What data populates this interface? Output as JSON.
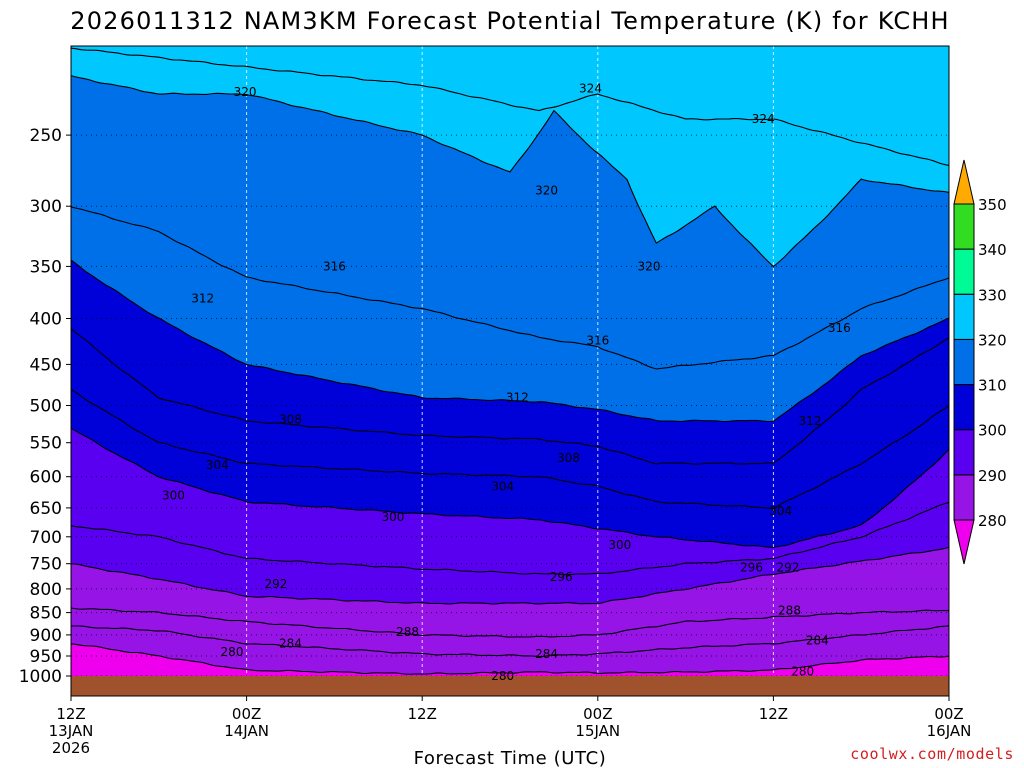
{
  "chart_data": {
    "type": "contour",
    "title": "2026011312 NAM3KM Forecast Potential Temperature (K) for KCHH",
    "xlabel": "Forecast Time (UTC)",
    "ylabel": "",
    "y_axis": {
      "ticks": [
        250,
        300,
        350,
        400,
        450,
        500,
        550,
        600,
        650,
        700,
        750,
        800,
        850,
        900,
        950,
        1000
      ],
      "labels": [
        "250",
        "300",
        "350",
        "400",
        "450",
        "500",
        "550",
        "600",
        "650",
        "700",
        "750",
        "800",
        "850",
        "900",
        "950",
        "1000"
      ],
      "scale": "log-pressure",
      "ylim": [
        1000,
        200
      ],
      "units": "hPa"
    },
    "x_axis": {
      "xlim": [
        0,
        60
      ],
      "units": "hours since 2026011312",
      "ticks": [
        {
          "hour": 0,
          "line1": "12Z",
          "line2": "13JAN",
          "line3": "2026"
        },
        {
          "hour": 12,
          "line1": "00Z",
          "line2": "14JAN",
          "line3": ""
        },
        {
          "hour": 24,
          "line1": "12Z",
          "line2": "",
          "line3": ""
        },
        {
          "hour": 36,
          "line1": "00Z",
          "line2": "15JAN",
          "line3": ""
        },
        {
          "hour": 48,
          "line1": "12Z",
          "line2": "",
          "line3": ""
        },
        {
          "hour": 60,
          "line1": "00Z",
          "line2": "16JAN",
          "line3": ""
        }
      ]
    },
    "grid": true,
    "contour_interval_K": 2,
    "colorbar": {
      "levels": [
        280,
        290,
        300,
        310,
        320,
        330,
        340,
        350
      ],
      "labels": [
        "280",
        "290",
        "300",
        "310",
        "320",
        "330",
        "340",
        "350"
      ],
      "colors": [
        "#ee00ee",
        "#9614e6",
        "#5a00f0",
        "#0000d8",
        "#0070e8",
        "#00c8ff",
        "#00fa96",
        "#32dc20",
        "#e6ff00",
        "#ffaa00"
      ],
      "placement": "right"
    },
    "isentropes": [
      {
        "theta": 280,
        "pressure_by_hour": [
          [
            0,
            920
          ],
          [
            6,
            950
          ],
          [
            12,
            985
          ],
          [
            24,
            995
          ],
          [
            32,
            990
          ],
          [
            36,
            992
          ],
          [
            42,
            990
          ],
          [
            48,
            985
          ],
          [
            54,
            960
          ],
          [
            60,
            950
          ]
        ]
      },
      {
        "theta": 284,
        "pressure_by_hour": [
          [
            0,
            880
          ],
          [
            6,
            890
          ],
          [
            12,
            920
          ],
          [
            24,
            945
          ],
          [
            32,
            950
          ],
          [
            36,
            945
          ],
          [
            42,
            930
          ],
          [
            48,
            920
          ],
          [
            54,
            900
          ],
          [
            60,
            880
          ]
        ]
      },
      {
        "theta": 288,
        "pressure_by_hour": [
          [
            0,
            840
          ],
          [
            6,
            850
          ],
          [
            12,
            870
          ],
          [
            24,
            900
          ],
          [
            32,
            905
          ],
          [
            36,
            900
          ],
          [
            42,
            870
          ],
          [
            48,
            860
          ],
          [
            54,
            850
          ],
          [
            60,
            845
          ]
        ]
      },
      {
        "theta": 292,
        "pressure_by_hour": [
          [
            0,
            750
          ],
          [
            6,
            780
          ],
          [
            12,
            815
          ],
          [
            24,
            830
          ],
          [
            32,
            830
          ],
          [
            36,
            830
          ],
          [
            42,
            800
          ],
          [
            48,
            770
          ],
          [
            54,
            745
          ],
          [
            60,
            720
          ]
        ]
      },
      {
        "theta": 296,
        "pressure_by_hour": [
          [
            0,
            680
          ],
          [
            6,
            700
          ],
          [
            12,
            740
          ],
          [
            24,
            760
          ],
          [
            32,
            770
          ],
          [
            36,
            770
          ],
          [
            42,
            750
          ],
          [
            48,
            740
          ],
          [
            54,
            700
          ],
          [
            60,
            640
          ]
        ]
      },
      {
        "theta": 300,
        "pressure_by_hour": [
          [
            0,
            530
          ],
          [
            6,
            600
          ],
          [
            12,
            640
          ],
          [
            24,
            660
          ],
          [
            32,
            670
          ],
          [
            36,
            685
          ],
          [
            40,
            700
          ],
          [
            48,
            720
          ],
          [
            54,
            680
          ],
          [
            60,
            560
          ]
        ]
      },
      {
        "theta": 304,
        "pressure_by_hour": [
          [
            0,
            480
          ],
          [
            6,
            550
          ],
          [
            12,
            580
          ],
          [
            24,
            595
          ],
          [
            32,
            600
          ],
          [
            36,
            615
          ],
          [
            40,
            640
          ],
          [
            48,
            650
          ],
          [
            54,
            580
          ],
          [
            60,
            500
          ]
        ]
      },
      {
        "theta": 308,
        "pressure_by_hour": [
          [
            0,
            410
          ],
          [
            6,
            490
          ],
          [
            12,
            520
          ],
          [
            24,
            540
          ],
          [
            32,
            545
          ],
          [
            36,
            555
          ],
          [
            40,
            580
          ],
          [
            48,
            580
          ],
          [
            54,
            480
          ],
          [
            60,
            420
          ]
        ]
      },
      {
        "theta": 312,
        "pressure_by_hour": [
          [
            0,
            345
          ],
          [
            6,
            400
          ],
          [
            12,
            450
          ],
          [
            24,
            490
          ],
          [
            32,
            495
          ],
          [
            36,
            505
          ],
          [
            40,
            520
          ],
          [
            48,
            520
          ],
          [
            54,
            440
          ],
          [
            60,
            400
          ]
        ]
      },
      {
        "theta": 316,
        "pressure_by_hour": [
          [
            0,
            300
          ],
          [
            6,
            320
          ],
          [
            12,
            360
          ],
          [
            24,
            390
          ],
          [
            32,
            420
          ],
          [
            36,
            430
          ],
          [
            40,
            455
          ],
          [
            48,
            440
          ],
          [
            54,
            390
          ],
          [
            60,
            360
          ]
        ]
      },
      {
        "theta": 320,
        "pressure_by_hour": [
          [
            0,
            215
          ],
          [
            6,
            225
          ],
          [
            12,
            225
          ],
          [
            24,
            250
          ],
          [
            30,
            275
          ],
          [
            33,
            235
          ],
          [
            38,
            280
          ],
          [
            40,
            330
          ],
          [
            44,
            300
          ],
          [
            48,
            350
          ],
          [
            54,
            280
          ],
          [
            60,
            290
          ]
        ]
      },
      {
        "theta": 324,
        "pressure_by_hour": [
          [
            0,
            200
          ],
          [
            6,
            205
          ],
          [
            12,
            210
          ],
          [
            24,
            220
          ],
          [
            32,
            235
          ],
          [
            36,
            225
          ],
          [
            42,
            240
          ],
          [
            48,
            240
          ],
          [
            54,
            255
          ],
          [
            60,
            270
          ]
        ]
      }
    ],
    "contour_labels": [
      {
        "text": "324",
        "hour": 35.5,
        "pressure": 222
      },
      {
        "text": "324",
        "hour": 47.3,
        "pressure": 240
      },
      {
        "text": "320",
        "hour": 11.9,
        "pressure": 224
      },
      {
        "text": "320",
        "hour": 32.5,
        "pressure": 288
      },
      {
        "text": "320",
        "hour": 39.5,
        "pressure": 350
      },
      {
        "text": "316",
        "hour": 18,
        "pressure": 350
      },
      {
        "text": "316",
        "hour": 36,
        "pressure": 423
      },
      {
        "text": "316",
        "hour": 52.5,
        "pressure": 410
      },
      {
        "text": "312",
        "hour": 9,
        "pressure": 380
      },
      {
        "text": "312",
        "hour": 30.5,
        "pressure": 490
      },
      {
        "text": "312",
        "hour": 50.5,
        "pressure": 520
      },
      {
        "text": "308",
        "hour": 15,
        "pressure": 518
      },
      {
        "text": "308",
        "hour": 34,
        "pressure": 572
      },
      {
        "text": "304",
        "hour": 10,
        "pressure": 582
      },
      {
        "text": "304",
        "hour": 29.5,
        "pressure": 615
      },
      {
        "text": "304",
        "hour": 48.5,
        "pressure": 655
      },
      {
        "text": "300",
        "hour": 7,
        "pressure": 630
      },
      {
        "text": "300",
        "hour": 22,
        "pressure": 665
      },
      {
        "text": "300",
        "hour": 37.5,
        "pressure": 715
      },
      {
        "text": "296",
        "hour": 33.5,
        "pressure": 776
      },
      {
        "text": "296",
        "hour": 46.5,
        "pressure": 757
      },
      {
        "text": "292",
        "hour": 14,
        "pressure": 790
      },
      {
        "text": "292",
        "hour": 49,
        "pressure": 757
      },
      {
        "text": "288",
        "hour": 23,
        "pressure": 893
      },
      {
        "text": "288",
        "hour": 49.1,
        "pressure": 845
      },
      {
        "text": "284",
        "hour": 15,
        "pressure": 920
      },
      {
        "text": "284",
        "hour": 32.5,
        "pressure": 945
      },
      {
        "text": "284",
        "hour": 51,
        "pressure": 913
      },
      {
        "text": "280",
        "hour": 11,
        "pressure": 940
      },
      {
        "text": "280",
        "hour": 29.5,
        "pressure": 1000
      },
      {
        "text": "280",
        "hour": 50,
        "pressure": 988
      }
    ],
    "ground_color": "#a0522d"
  },
  "credit": "coolwx.com/models"
}
